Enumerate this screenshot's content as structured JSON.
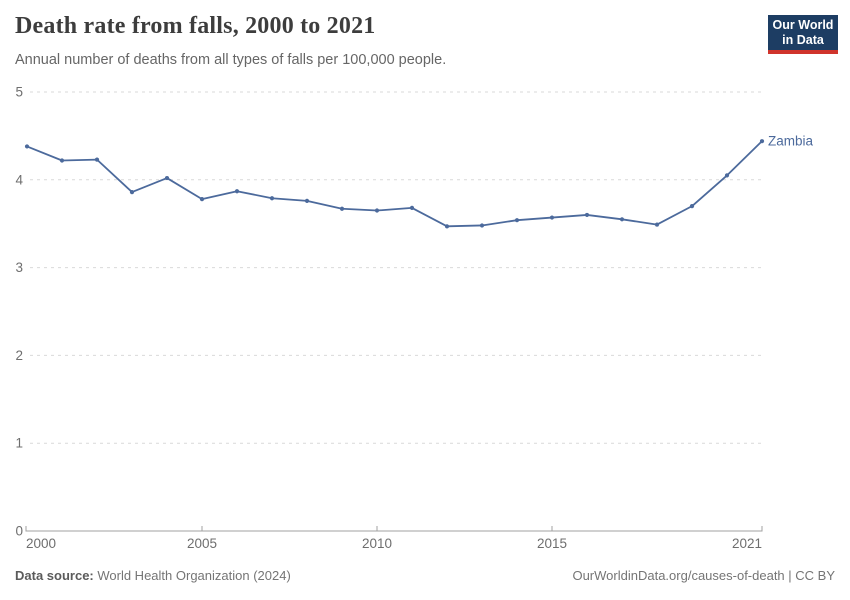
{
  "header": {
    "title": "Death rate from falls, 2000 to 2021",
    "subtitle": "Annual number of deaths from all types of falls per 100,000 people.",
    "logo": {
      "line1": "Our World",
      "line2": "in Data",
      "bg_color": "#1d3d63",
      "bar_color": "#d0342c"
    }
  },
  "chart_data": {
    "type": "line",
    "title": "Death rate from falls, 2000 to 2021",
    "xlabel": "",
    "ylabel": "",
    "x": [
      2000,
      2001,
      2002,
      2003,
      2004,
      2005,
      2006,
      2007,
      2008,
      2009,
      2010,
      2011,
      2012,
      2013,
      2014,
      2015,
      2016,
      2017,
      2018,
      2019,
      2020,
      2021
    ],
    "series": [
      {
        "name": "Zambia",
        "color": "#4C6A9C",
        "values": [
          4.38,
          4.22,
          4.23,
          3.86,
          4.02,
          3.78,
          3.87,
          3.79,
          3.76,
          3.67,
          3.65,
          3.68,
          3.47,
          3.48,
          3.54,
          3.57,
          3.6,
          3.55,
          3.49,
          3.7,
          4.05,
          4.44
        ]
      }
    ],
    "ylim": [
      0,
      5
    ],
    "yticks": [
      0,
      1,
      2,
      3,
      4,
      5
    ],
    "xticks": [
      2000,
      2005,
      2010,
      2015,
      2021
    ],
    "grid": "horizontal-dashed",
    "legend_position": "end-of-line-label",
    "end_label": "Zambia"
  },
  "colors": {
    "line": "#4C6A9C",
    "grid": "#d9d9d9",
    "axis": "#a0a0a0",
    "tick_label": "#6e6e6e"
  },
  "footer": {
    "source_label": "Data source:",
    "source_text": " World Health Organization (2024)",
    "rights": "OurWorldinData.org/causes-of-death | CC BY"
  }
}
